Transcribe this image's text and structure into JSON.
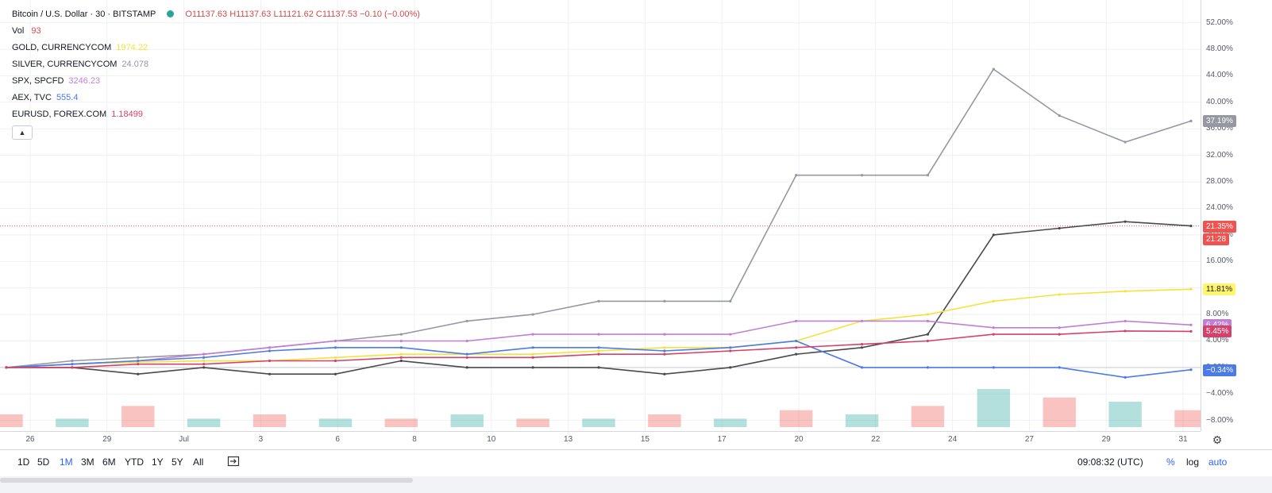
{
  "legend": {
    "main_title": "Bitcoin / U.S. Dollar · 30 · BITSTAMP",
    "ohlc": "O11137.63 H11137.63 L11121.62 C11137.53 −0.10 (−0.00%)",
    "vol_label": "Vol",
    "vol_value": "93",
    "items": [
      {
        "name": "GOLD, CURRENCYCOM",
        "value": "1974.22",
        "color": "#f5e23a"
      },
      {
        "name": "SILVER, CURRENCYCOM",
        "value": "24.078",
        "color": "#9598a1"
      },
      {
        "name": "SPX, SPCFD",
        "value": "3246.23",
        "color": "#c07fd6"
      },
      {
        "name": "AEX, TVC",
        "value": "555.4",
        "color": "#4a7be8"
      },
      {
        "name": "EURUSD, FOREX.COM",
        "value": "1.18499",
        "color": "#d4416b"
      }
    ],
    "collapse_icon": "chevron-up-icon"
  },
  "price_scale": {
    "labels": [
      "52.00%",
      "48.00%",
      "44.00%",
      "40.00%",
      "36.00%",
      "32.00%",
      "28.00%",
      "24.00%",
      "20.00%",
      "16.00%",
      "12.00%",
      "8.00%",
      "4.00%",
      "0.00%",
      "−4.00%",
      "−8.00%"
    ],
    "badges": [
      {
        "text": "37.19%",
        "value": 37.19,
        "bg": "#9598a1",
        "fg": "#ffffff"
      },
      {
        "text": "21.35%",
        "value": 21.35,
        "bg": "#ef5350",
        "fg": "#ffffff"
      },
      {
        "text": "21:28",
        "value": 19.4,
        "bg": "#ef5350",
        "fg": "#ffffff"
      },
      {
        "text": "11.81%",
        "value": 11.81,
        "bg": "#fff56a",
        "fg": "#131722"
      },
      {
        "text": "6.42%",
        "value": 6.42,
        "bg": "#c07fd6",
        "fg": "#ffffff"
      },
      {
        "text": "5.45%",
        "value": 5.45,
        "bg": "#d4416b",
        "fg": "#ffffff"
      },
      {
        "text": "−0.34%",
        "value": -0.34,
        "bg": "#4a7be8",
        "fg": "#ffffff"
      }
    ]
  },
  "time_axis": {
    "ticks": [
      "26",
      "29",
      "Jul",
      "3",
      "6",
      "8",
      "10",
      "13",
      "15",
      "17",
      "20",
      "22",
      "24",
      "27",
      "29",
      "31"
    ],
    "settings_icon": "gear-icon"
  },
  "bottom_bar": {
    "ranges": [
      "1D",
      "5D",
      "1M",
      "3M",
      "6M",
      "YTD",
      "1Y",
      "5Y",
      "All"
    ],
    "active_range": "1M",
    "compare_icon": "compare-icon",
    "clock": "09:08:32 (UTC)",
    "percent_label": "%",
    "log_label": "log",
    "auto_label": "auto"
  },
  "chart_data": {
    "type": "line",
    "y_unit": "percent change",
    "ylim": [
      -9,
      54
    ],
    "grid": true,
    "x": [
      "Jun 25",
      "Jun 26",
      "Jun 29",
      "Jul 1",
      "Jul 3",
      "Jul 6",
      "Jul 8",
      "Jul 10",
      "Jul 13",
      "Jul 15",
      "Jul 17",
      "Jul 20",
      "Jul 22",
      "Jul 24",
      "Jul 27",
      "Jul 28",
      "Jul 29",
      "Jul 30",
      "Jul 31"
    ],
    "series": [
      {
        "name": "Bitcoin / U.S. Dollar",
        "color": "#4a4a4a",
        "values": [
          0,
          0,
          -1,
          0,
          -1,
          -1,
          1,
          0,
          0,
          0,
          -1,
          0,
          2,
          3,
          5,
          20,
          21,
          22,
          21.35
        ]
      },
      {
        "name": "GOLD, CURRENCYCOM",
        "color": "#f5e23a",
        "values": [
          0,
          0.5,
          0.8,
          1,
          1,
          1.5,
          2,
          2,
          2,
          2.5,
          3,
          3,
          4,
          7,
          8,
          10,
          11,
          11.5,
          11.81
        ]
      },
      {
        "name": "SILVER, CURRENCYCOM",
        "color": "#9598a1",
        "values": [
          0,
          1,
          1.5,
          2,
          3,
          4,
          5,
          7,
          8,
          10,
          10,
          10,
          29,
          29,
          29,
          45,
          38,
          34,
          37.19
        ]
      },
      {
        "name": "SPX, SPCFD",
        "color": "#c07fd6",
        "values": [
          0,
          0.5,
          1,
          2,
          3,
          4,
          4,
          4,
          5,
          5,
          5,
          5,
          7,
          7,
          7,
          6,
          6,
          7,
          6.42
        ]
      },
      {
        "name": "AEX, TVC",
        "color": "#4a7be8",
        "values": [
          0,
          0.5,
          1,
          1.5,
          2.5,
          3,
          3,
          2,
          3,
          3,
          2.5,
          3,
          4,
          0,
          0,
          0,
          0,
          -1.5,
          -0.34
        ]
      },
      {
        "name": "EURUSD, FOREX.COM",
        "color": "#d4416b",
        "values": [
          0,
          0,
          0.5,
          0.5,
          1,
          1,
          1.5,
          1.5,
          1.5,
          2,
          2,
          2.5,
          3,
          3.5,
          4,
          5,
          5,
          5.5,
          5.45
        ]
      }
    ],
    "price_line": 21.35,
    "volume": {
      "name": "Vol",
      "values": [
        3,
        2,
        5,
        2,
        3,
        2,
        2,
        3,
        2,
        2,
        3,
        2,
        4,
        3,
        5,
        9,
        7,
        6,
        4
      ]
    }
  }
}
